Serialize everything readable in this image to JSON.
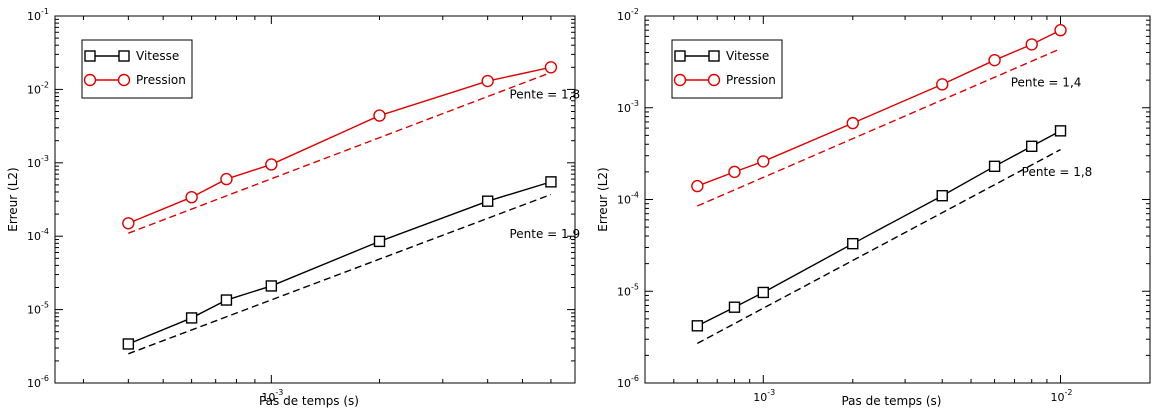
{
  "chart_data": [
    {
      "type": "line",
      "xlabel": "Pas de temps (s)",
      "ylabel": "Erreur (L2)",
      "xscale": "log",
      "yscale": "log",
      "xlim": [
        0.00025,
        0.007
      ],
      "ylim": [
        1e-06,
        0.1
      ],
      "x_tick_labels": [
        {
          "value": 0.001,
          "mantissa": "10",
          "exp": "-3"
        }
      ],
      "y_tick_labels": [
        {
          "value": 1e-06,
          "mantissa": "10",
          "exp": "-6"
        },
        {
          "value": 1e-05,
          "mantissa": "10",
          "exp": "-5"
        },
        {
          "value": 0.0001,
          "mantissa": "10",
          "exp": "-4"
        },
        {
          "value": 0.001,
          "mantissa": "10",
          "exp": "-3"
        },
        {
          "value": 0.01,
          "mantissa": "10",
          "exp": "-2"
        },
        {
          "value": 0.1,
          "mantissa": "10",
          "exp": "-1"
        }
      ],
      "legend": {
        "position": "top-left",
        "entries": [
          "Vitesse",
          "Pression"
        ]
      },
      "series": [
        {
          "name": "Vitesse",
          "color": "#000000",
          "marker": "square",
          "x": [
            0.0004,
            0.0006,
            0.00075,
            0.001,
            0.002,
            0.004,
            0.006
          ],
          "y": [
            3.4e-06,
            7.7e-06,
            1.35e-05,
            2.1e-05,
            8.5e-05,
            0.0003,
            0.00055
          ]
        },
        {
          "name": "Pression",
          "color": "#e00000",
          "marker": "circle",
          "x": [
            0.0004,
            0.0006,
            0.00075,
            0.001,
            0.002,
            0.004,
            0.006
          ],
          "y": [
            0.00015,
            0.00034,
            0.0006,
            0.00095,
            0.0044,
            0.013,
            0.02
          ]
        }
      ],
      "reference_lines": [
        {
          "label": "Pente = 1,9",
          "color": "#000000",
          "x": [
            0.0004,
            0.006
          ],
          "y": [
            2.5e-06,
            0.00037
          ]
        },
        {
          "label": "Pente = 1,8",
          "color": "#e00000",
          "x": [
            0.0004,
            0.006
          ],
          "y": [
            0.00011,
            0.017
          ]
        }
      ],
      "annotations": [
        {
          "text": "Pente = 1,8",
          "x": 0.0046,
          "y": 0.0075,
          "color": "#000000"
        },
        {
          "text": "Pente = 1,9",
          "x": 0.0046,
          "y": 9.5e-05,
          "color": "#000000"
        }
      ],
      "grid": false
    },
    {
      "type": "line",
      "xlabel": "Pas de temps (s)",
      "ylabel": "Erreur (L2)",
      "xscale": "log",
      "yscale": "log",
      "xlim": [
        0.0004,
        0.02
      ],
      "ylim": [
        1e-06,
        0.01
      ],
      "x_tick_labels": [
        {
          "value": 0.001,
          "mantissa": "10",
          "exp": "-3"
        },
        {
          "value": 0.01,
          "mantissa": "10",
          "exp": "-2"
        }
      ],
      "y_tick_labels": [
        {
          "value": 1e-06,
          "mantissa": "10",
          "exp": "-6"
        },
        {
          "value": 1e-05,
          "mantissa": "10",
          "exp": "-5"
        },
        {
          "value": 0.0001,
          "mantissa": "10",
          "exp": "-4"
        },
        {
          "value": 0.001,
          "mantissa": "10",
          "exp": "-3"
        },
        {
          "value": 0.01,
          "mantissa": "10",
          "exp": "-2"
        }
      ],
      "legend": {
        "position": "top-left",
        "entries": [
          "Vitesse",
          "Pression"
        ]
      },
      "series": [
        {
          "name": "Vitesse",
          "color": "#000000",
          "marker": "square",
          "x": [
            0.0006,
            0.0008,
            0.001,
            0.002,
            0.004,
            0.006,
            0.008,
            0.01
          ],
          "y": [
            4.2e-06,
            6.7e-06,
            9.7e-06,
            3.3e-05,
            0.00011,
            0.00023,
            0.00038,
            0.00056
          ]
        },
        {
          "name": "Pression",
          "color": "#e00000",
          "marker": "circle",
          "x": [
            0.0006,
            0.0008,
            0.001,
            0.002,
            0.004,
            0.006,
            0.008,
            0.01
          ],
          "y": [
            0.00014,
            0.0002,
            0.00026,
            0.00068,
            0.0018,
            0.0033,
            0.0049,
            0.007
          ]
        }
      ],
      "reference_lines": [
        {
          "label": "Pente = 1,8",
          "color": "#000000",
          "x": [
            0.0006,
            0.01
          ],
          "y": [
            2.7e-06,
            0.00035
          ]
        },
        {
          "label": "Pente = 1,4",
          "color": "#e00000",
          "x": [
            0.0006,
            0.01
          ],
          "y": [
            8.5e-05,
            0.0044
          ]
        }
      ],
      "annotations": [
        {
          "text": "Pente = 1,4",
          "x": 0.0068,
          "y": 0.0017,
          "color": "#000000"
        },
        {
          "text": "Pente = 1,8",
          "x": 0.0074,
          "y": 0.00018,
          "color": "#000000"
        }
      ],
      "grid": false
    }
  ]
}
